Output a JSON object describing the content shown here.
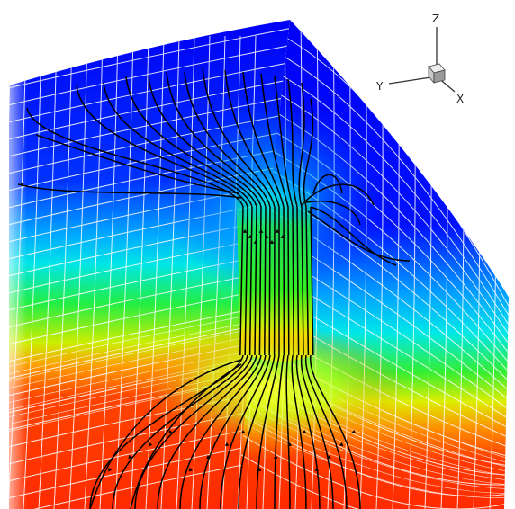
{
  "axes_triad": {
    "x_label": "X",
    "y_label": "Y",
    "z_label": "Z"
  },
  "colors": {
    "cold": "#0000f5",
    "cool": "#00d8ff",
    "mid": "#22ee22",
    "warm": "#ffee00",
    "hot": "#ff3a00",
    "mesh": "#ffffff",
    "streamline": "#000000"
  }
}
